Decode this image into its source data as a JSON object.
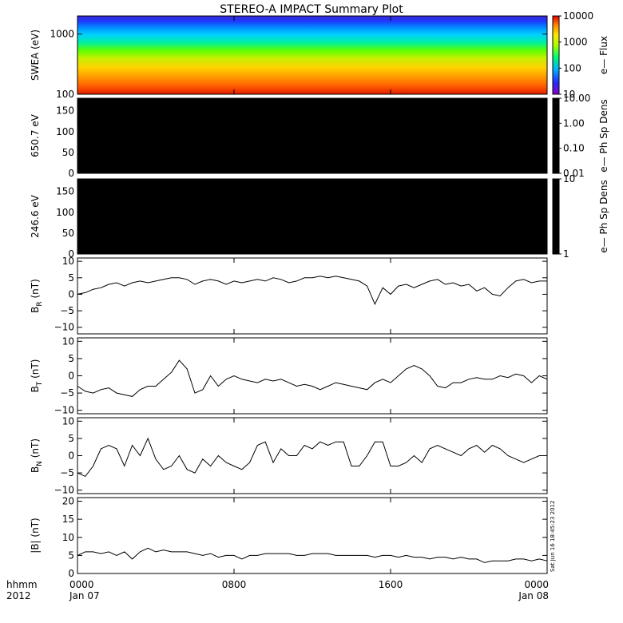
{
  "title": "STEREO-A IMPACT Summary Plot",
  "footer": {
    "hhmm": "hhmm",
    "year": "2012",
    "x_ticks": [
      "0000",
      "0800",
      "1600",
      "0000"
    ],
    "x_dates": [
      "Jan 07",
      "",
      "",
      "Jan 08"
    ],
    "stamp": "Sat Jun 16 18:45:23 2012"
  },
  "chart_data": [
    {
      "type": "heatmap",
      "name": "swea",
      "ylabel": "SWEA (eV)",
      "yscale": "log",
      "ylim": [
        100,
        2000
      ],
      "yticks": [
        "1000",
        "100"
      ],
      "ytick_values": [
        1000,
        100
      ],
      "colorbar": {
        "label": "e— Flux",
        "scale": "log",
        "range": [
          10,
          10000
        ],
        "ticks": [
          "10000",
          "1000",
          "100",
          "10"
        ],
        "tick_values": [
          10000,
          1000,
          100,
          10
        ],
        "colormap": "rainbow"
      },
      "x_hours": [
        0,
        24
      ]
    },
    {
      "type": "heatmap",
      "name": "pad650",
      "ylabel": "650.7 eV",
      "ylim": [
        0,
        180
      ],
      "yticks": [
        "150",
        "100",
        "50",
        "0"
      ],
      "ytick_values": [
        150,
        100,
        50,
        0
      ],
      "fill": "#000000",
      "colorbar": {
        "label": "e— Ph Sp Dens",
        "scale": "log",
        "range": [
          0.01,
          10
        ],
        "ticks": [
          "10.00",
          "1.00",
          "0.10",
          "0.01"
        ],
        "tick_values": [
          10,
          1,
          0.1,
          0.01
        ]
      }
    },
    {
      "type": "heatmap",
      "name": "pad246",
      "ylabel": "246.6 eV",
      "ylim": [
        0,
        180
      ],
      "yticks": [
        "150",
        "100",
        "50",
        "0"
      ],
      "ytick_values": [
        150,
        100,
        50,
        0
      ],
      "fill": "#000000",
      "colorbar": {
        "label": "e— Ph Sp Dens",
        "scale": "log",
        "range": [
          1,
          10
        ],
        "ticks": [
          "10",
          "1"
        ],
        "tick_values": [
          10,
          1
        ]
      }
    },
    {
      "type": "line",
      "name": "br",
      "ylabel_main": "B",
      "ylabel_sub": "R",
      "ylabel_tail": " (nT)",
      "ylim": [
        -12,
        11
      ],
      "yticks": [
        "10",
        "5",
        "0",
        "−5",
        "−10"
      ],
      "ytick_values": [
        10,
        5,
        0,
        -5,
        -10
      ],
      "x_hours": [
        0,
        0.4,
        0.8,
        1.2,
        1.6,
        2.0,
        2.4,
        2.8,
        3.2,
        3.6,
        4.0,
        4.4,
        4.8,
        5.2,
        5.6,
        6.0,
        6.4,
        6.8,
        7.2,
        7.6,
        8.0,
        8.4,
        8.8,
        9.2,
        9.6,
        10.0,
        10.4,
        10.8,
        11.2,
        11.6,
        12.0,
        12.4,
        12.8,
        13.2,
        13.6,
        14.0,
        14.4,
        14.8,
        15.2,
        15.6,
        16.0,
        16.4,
        16.8,
        17.2,
        17.6,
        18.0,
        18.4,
        18.8,
        19.2,
        19.6,
        20.0,
        20.4,
        20.8,
        21.2,
        21.6,
        22.0,
        22.4,
        22.8,
        23.2,
        23.6,
        24.0
      ],
      "values": [
        0,
        0.5,
        1.5,
        2,
        3,
        3.5,
        2.5,
        3.5,
        4,
        3.5,
        4,
        4.5,
        5,
        5,
        4.5,
        3,
        4,
        4.5,
        4,
        3,
        4,
        3.5,
        4,
        4.5,
        4,
        5,
        4.5,
        3.5,
        4,
        5,
        5,
        5.5,
        5,
        5.5,
        5,
        4.5,
        4,
        2.5,
        -3,
        2,
        0,
        2.5,
        3,
        2,
        3,
        4,
        4.5,
        3,
        3.5,
        2.5,
        3,
        1,
        2,
        0,
        -0.5,
        2,
        4,
        4.5,
        3.5,
        4,
        4
      ]
    },
    {
      "type": "line",
      "name": "bt",
      "ylabel_main": "B",
      "ylabel_sub": "T",
      "ylabel_tail": " (nT)",
      "ylim": [
        -11,
        11
      ],
      "yticks": [
        "10",
        "5",
        "0",
        "−5",
        "−10"
      ],
      "ytick_values": [
        10,
        5,
        0,
        -5,
        -10
      ],
      "x_hours": [
        0,
        0.4,
        0.8,
        1.2,
        1.6,
        2.0,
        2.4,
        2.8,
        3.2,
        3.6,
        4.0,
        4.4,
        4.8,
        5.2,
        5.6,
        6.0,
        6.4,
        6.8,
        7.2,
        7.6,
        8.0,
        8.4,
        8.8,
        9.2,
        9.6,
        10.0,
        10.4,
        10.8,
        11.2,
        11.6,
        12.0,
        12.4,
        12.8,
        13.2,
        13.6,
        14.0,
        14.4,
        14.8,
        15.2,
        15.6,
        16.0,
        16.4,
        16.8,
        17.2,
        17.6,
        18.0,
        18.4,
        18.8,
        19.2,
        19.6,
        20.0,
        20.4,
        20.8,
        21.2,
        21.6,
        22.0,
        22.4,
        22.8,
        23.2,
        23.6,
        24.0
      ],
      "values": [
        -3,
        -4.5,
        -5,
        -4,
        -3.5,
        -5,
        -5.5,
        -6,
        -4,
        -3,
        -3,
        -1,
        1,
        4.5,
        2,
        -5,
        -4,
        0,
        -3,
        -1,
        0,
        -1,
        -1.5,
        -2,
        -1,
        -1.5,
        -1,
        -2,
        -3,
        -2.5,
        -3,
        -4,
        -3,
        -2,
        -2.5,
        -3,
        -3.5,
        -4,
        -2,
        -1,
        -2,
        0,
        2,
        3,
        2,
        0,
        -3,
        -3.5,
        -2,
        -2,
        -1,
        -0.5,
        -1,
        -1,
        0,
        -0.5,
        0.5,
        0,
        -2,
        0,
        -1
      ]
    },
    {
      "type": "line",
      "name": "bn",
      "ylabel_main": "B",
      "ylabel_sub": "N",
      "ylabel_tail": " (nT)",
      "ylim": [
        -11,
        11
      ],
      "yticks": [
        "10",
        "5",
        "0",
        "−5",
        "−10"
      ],
      "ytick_values": [
        10,
        5,
        0,
        -5,
        -10
      ],
      "x_hours": [
        0,
        0.4,
        0.8,
        1.2,
        1.6,
        2.0,
        2.4,
        2.8,
        3.2,
        3.6,
        4.0,
        4.4,
        4.8,
        5.2,
        5.6,
        6.0,
        6.4,
        6.8,
        7.2,
        7.6,
        8.0,
        8.4,
        8.8,
        9.2,
        9.6,
        10.0,
        10.4,
        10.8,
        11.2,
        11.6,
        12.0,
        12.4,
        12.8,
        13.2,
        13.6,
        14.0,
        14.4,
        14.8,
        15.2,
        15.6,
        16.0,
        16.4,
        16.8,
        17.2,
        17.6,
        18.0,
        18.4,
        18.8,
        19.2,
        19.6,
        20.0,
        20.4,
        20.8,
        21.2,
        21.6,
        22.0,
        22.4,
        22.8,
        23.2,
        23.6,
        24.0
      ],
      "values": [
        -5,
        -6,
        -3,
        2,
        3,
        2,
        -3,
        3,
        0,
        5,
        -1,
        -4,
        -3,
        0,
        -4,
        -5,
        -1,
        -3,
        0,
        -2,
        -3,
        -4,
        -2,
        3,
        4,
        -2,
        2,
        0,
        0,
        3,
        2,
        4,
        3,
        4,
        4,
        -3,
        -3,
        0,
        4,
        4,
        -3,
        -3,
        -2,
        0,
        -2,
        2,
        3,
        2,
        1,
        0,
        2,
        3,
        1,
        3,
        2,
        0,
        -1,
        -2,
        -1,
        0,
        0
      ]
    },
    {
      "type": "line",
      "name": "bmag",
      "ylabel_main": "|B| (nT)",
      "ylim": [
        0,
        21
      ],
      "yticks": [
        "20",
        "15",
        "10",
        "5",
        "0"
      ],
      "ytick_values": [
        20,
        15,
        10,
        5,
        0
      ],
      "x_hours": [
        0,
        0.4,
        0.8,
        1.2,
        1.6,
        2.0,
        2.4,
        2.8,
        3.2,
        3.6,
        4.0,
        4.4,
        4.8,
        5.2,
        5.6,
        6.0,
        6.4,
        6.8,
        7.2,
        7.6,
        8.0,
        8.4,
        8.8,
        9.2,
        9.6,
        10.0,
        10.4,
        10.8,
        11.2,
        11.6,
        12.0,
        12.4,
        12.8,
        13.2,
        13.6,
        14.0,
        14.4,
        14.8,
        15.2,
        15.6,
        16.0,
        16.4,
        16.8,
        17.2,
        17.6,
        18.0,
        18.4,
        18.8,
        19.2,
        19.6,
        20.0,
        20.4,
        20.8,
        21.2,
        21.6,
        22.0,
        22.4,
        22.8,
        23.2,
        23.6,
        24.0
      ],
      "values": [
        5,
        6,
        6,
        5.5,
        6,
        5,
        6,
        4,
        6,
        7,
        6,
        6.5,
        6,
        6,
        6,
        5.5,
        5,
        5.5,
        4.5,
        5,
        5,
        4,
        5,
        5,
        5.5,
        5.5,
        5.5,
        5.5,
        5,
        5,
        5.5,
        5.5,
        5.5,
        5,
        5,
        5,
        5,
        5,
        4.5,
        5,
        5,
        4.5,
        5,
        4.5,
        4.5,
        4,
        4.5,
        4.5,
        4,
        4.5,
        4,
        4,
        3,
        3.5,
        3.5,
        3.5,
        4,
        4,
        3.5,
        4,
        3.5
      ]
    }
  ]
}
